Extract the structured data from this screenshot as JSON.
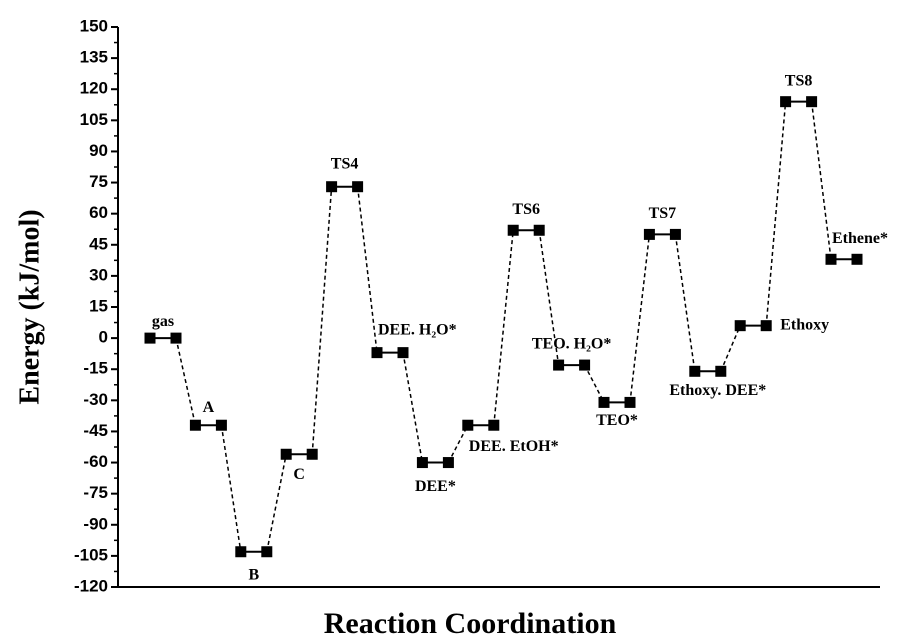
{
  "chart_data": {
    "type": "energy-profile",
    "x_label": "Reaction Coordination",
    "y_label": "Energy (kJ/mol)",
    "categories": [
      "gas",
      "A",
      "B",
      "C",
      "TS4",
      "DEE. H₂O*",
      "DEE*",
      "DEE. EtOH*",
      "TS6",
      "TEO. H₂O*",
      "TEO*",
      "TS7",
      "Ethoxy. DEE*",
      "Ethoxy",
      "TS8",
      "Ethene*"
    ],
    "values": [
      0,
      -42,
      -103,
      -56,
      73,
      -7,
      -60,
      -42,
      52,
      -13,
      -31,
      50,
      -16,
      6,
      114,
      38
    ],
    "color": "#000000",
    "ylim": [
      -120,
      150
    ],
    "yticks": [
      -120,
      -105,
      -90,
      -75,
      -60,
      -45,
      -30,
      -15,
      0,
      15,
      30,
      45,
      60,
      75,
      90,
      105,
      120,
      135,
      150
    ]
  }
}
